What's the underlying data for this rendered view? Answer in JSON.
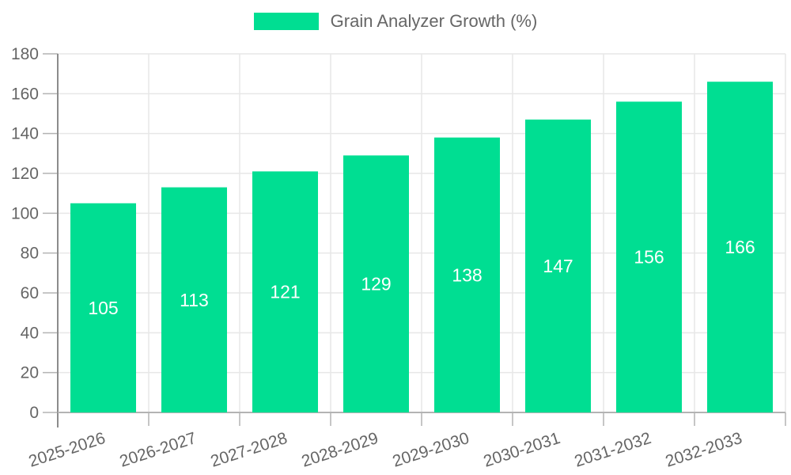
{
  "legend": {
    "label": "Grain Analyzer Growth (%)"
  },
  "chart_data": {
    "type": "bar",
    "title": "Grain Analyzer Growth (%)",
    "categories": [
      "2025-2026",
      "2026-2027",
      "2027-2028",
      "2028-2029",
      "2029-2030",
      "2030-2031",
      "2031-2032",
      "2032-2033"
    ],
    "series": [
      {
        "name": "Grain Analyzer Growth (%)",
        "values": [
          105,
          113,
          121,
          129,
          138,
          147,
          156,
          166
        ]
      }
    ],
    "xlabel": "",
    "ylabel": "",
    "ylim": [
      0,
      180
    ],
    "ytick_step": 20,
    "yticks": [
      0,
      20,
      40,
      60,
      80,
      100,
      120,
      140,
      160,
      180
    ],
    "grid": true,
    "legend_position": "top",
    "data_labels_position": "center",
    "x_label_rotation": -18
  },
  "style": {
    "bar_color": "#00DE92",
    "data_label_color": "#ffffff",
    "axis_text_color": "#666666",
    "grid_color": "#e7e7e7",
    "y_axis_line_color": "#8c8c8c",
    "x_axis_line_color": "#b3b3b3",
    "tick_color": "#b3b3b3",
    "background_color": "#ffffff"
  }
}
